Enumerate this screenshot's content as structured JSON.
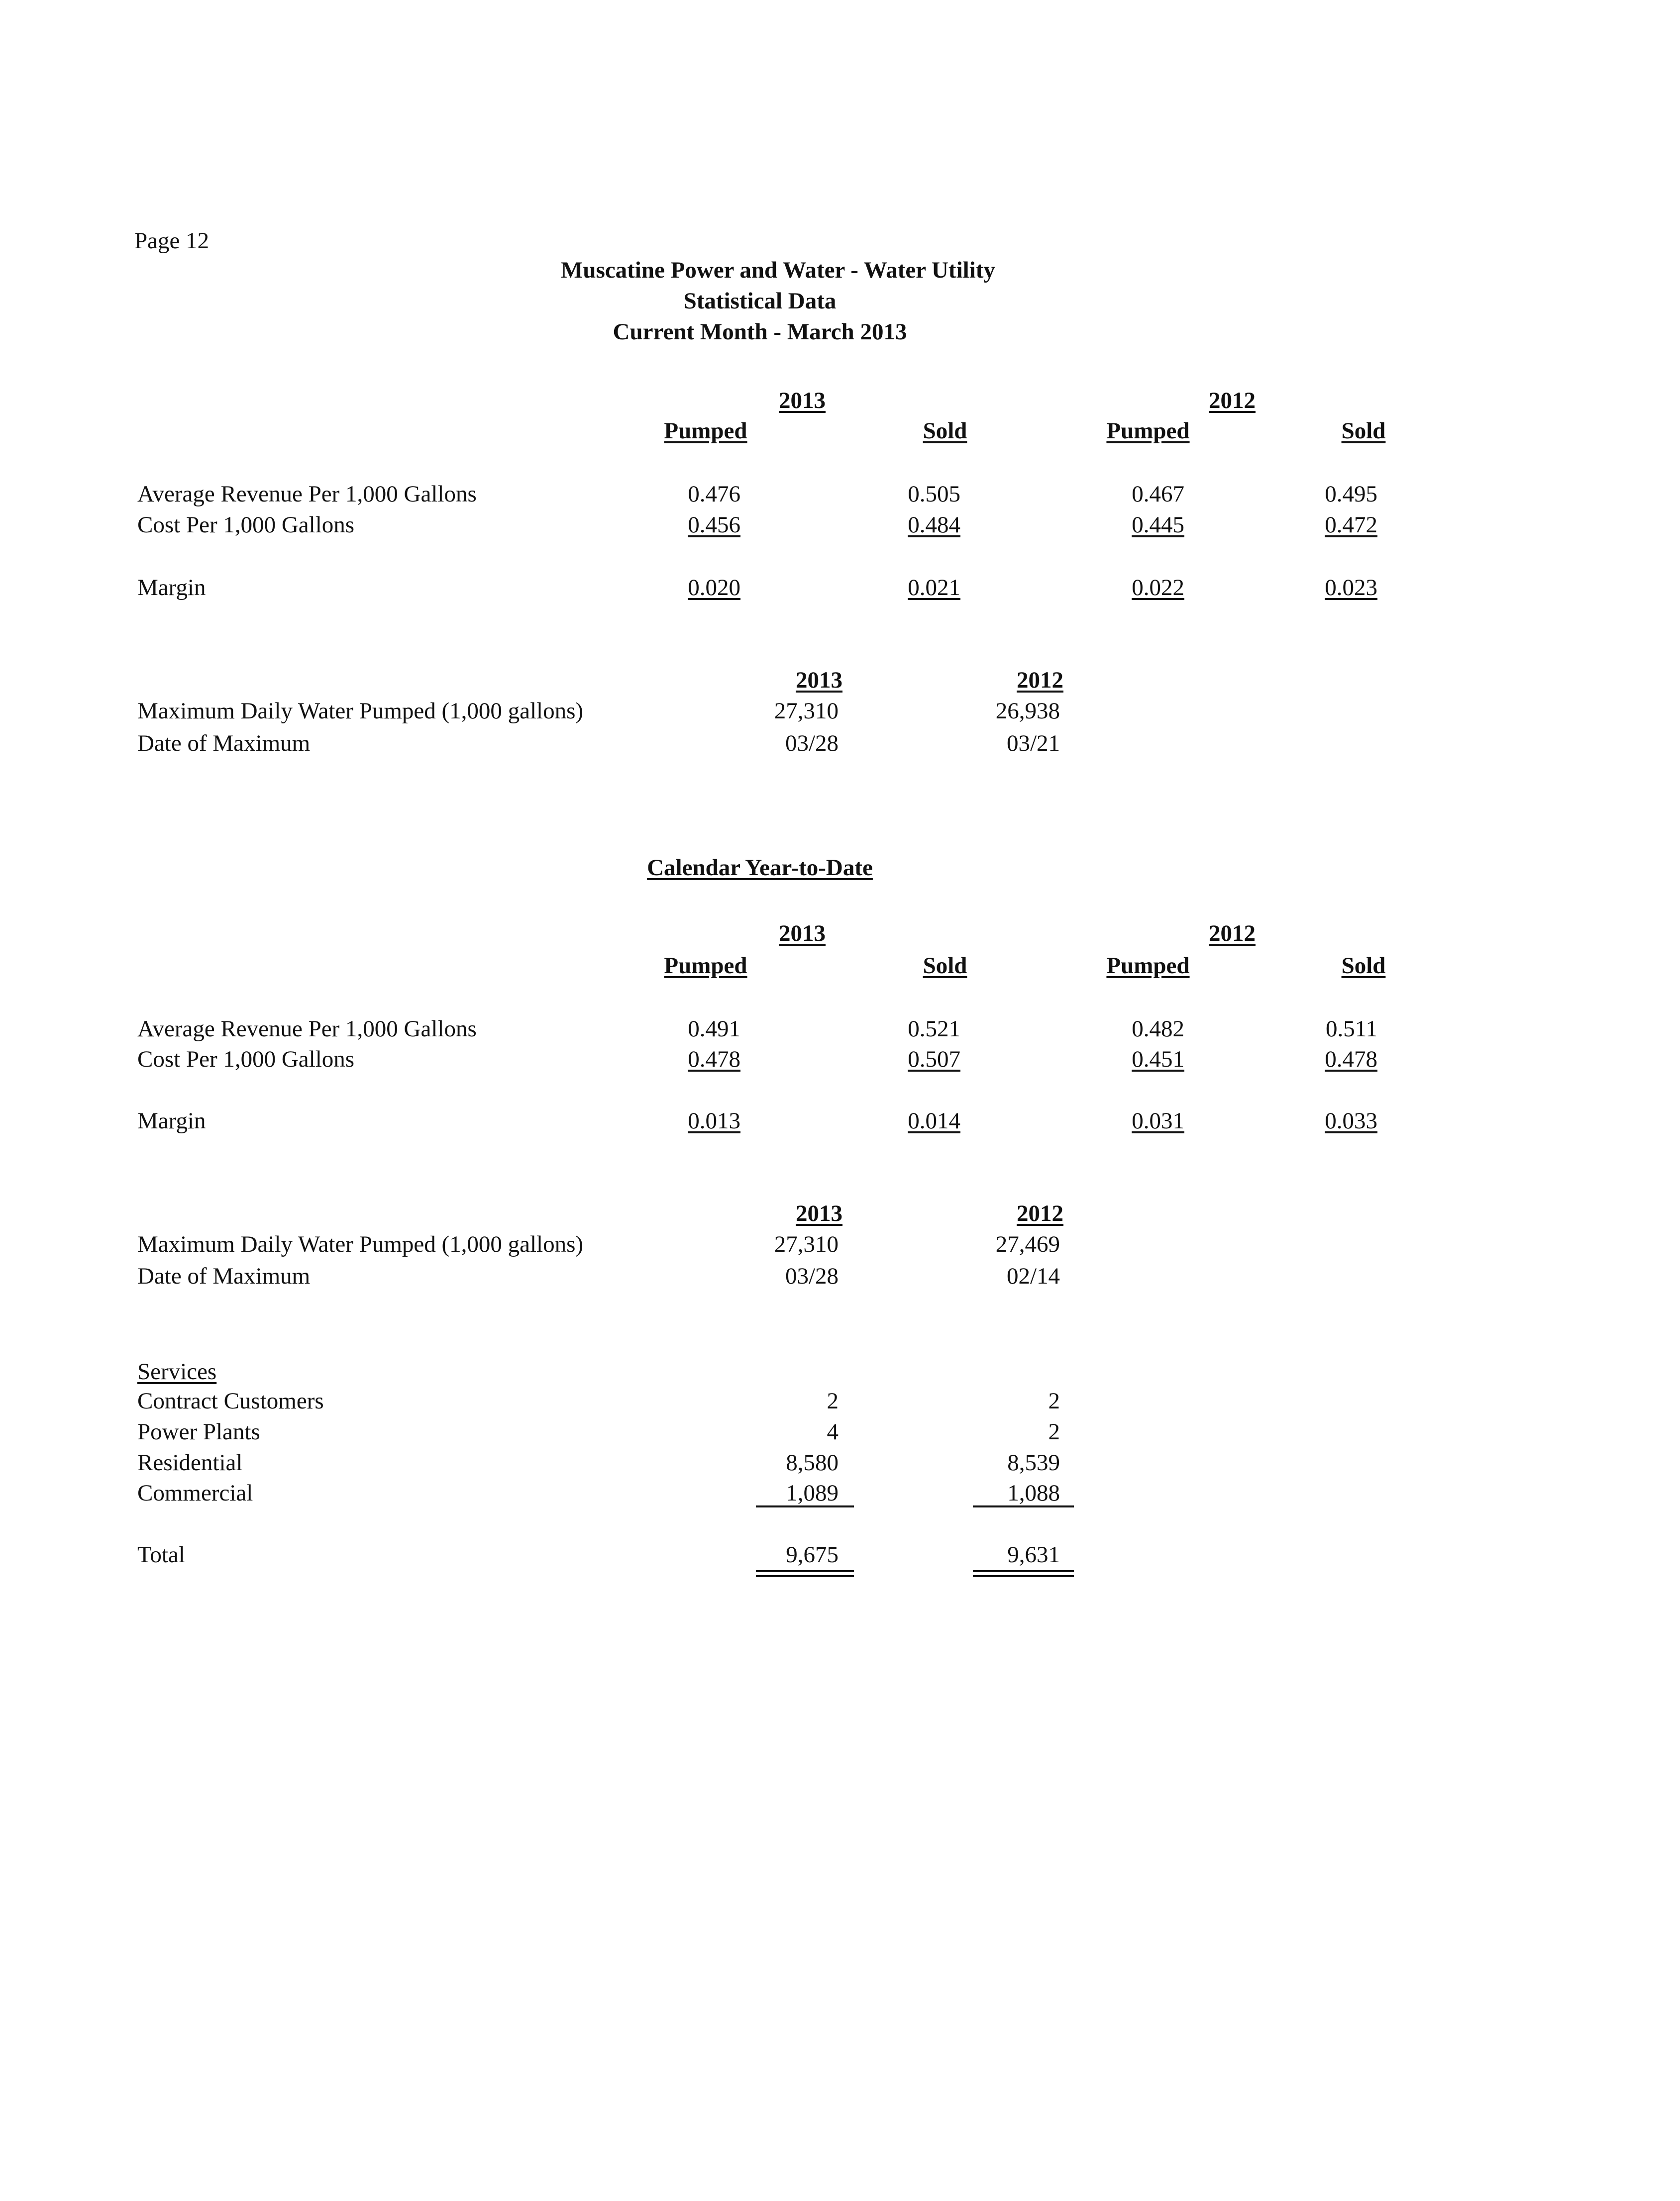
{
  "page_label": "Page 12",
  "title": {
    "line1": "Muscatine Power and Water - Water Utility",
    "line2": "Statistical Data",
    "line3": "Current Month - March 2013"
  },
  "current_month": {
    "years": [
      "2013",
      "2012"
    ],
    "col_headers": [
      "Pumped",
      "Sold",
      "Pumped",
      "Sold"
    ],
    "rows": [
      {
        "label": "Average Revenue Per 1,000 Gallons",
        "values": [
          "0.476",
          "0.505",
          "0.467",
          "0.495"
        ]
      },
      {
        "label": "Cost Per 1,000 Gallons",
        "values": [
          "0.456",
          "0.484",
          "0.445",
          "0.472"
        ]
      },
      {
        "label": "Margin",
        "values": [
          "0.020",
          "0.021",
          "0.022",
          "0.023"
        ]
      }
    ],
    "max": {
      "years": [
        "2013",
        "2012"
      ],
      "pumped_label": "Maximum Daily Water Pumped (1,000 gallons)",
      "pumped": [
        "27,310",
        "26,938"
      ],
      "date_label": "Date of Maximum",
      "dates": [
        "03/28",
        "03/21"
      ]
    }
  },
  "ytd": {
    "title": "Calendar Year-to-Date",
    "years": [
      "2013",
      "2012"
    ],
    "col_headers": [
      "Pumped",
      "Sold",
      "Pumped",
      "Sold"
    ],
    "rows": [
      {
        "label": "Average Revenue Per 1,000 Gallons",
        "values": [
          "0.491",
          "0.521",
          "0.482",
          "0.511"
        ]
      },
      {
        "label": "Cost Per 1,000 Gallons",
        "values": [
          "0.478",
          "0.507",
          "0.451",
          "0.478"
        ]
      },
      {
        "label": "Margin",
        "values": [
          "0.013",
          "0.014",
          "0.031",
          "0.033"
        ]
      }
    ],
    "max": {
      "years": [
        "2013",
        "2012"
      ],
      "pumped_label": "Maximum Daily Water Pumped (1,000 gallons)",
      "pumped": [
        "27,310",
        "27,469"
      ],
      "date_label": "Date of Maximum",
      "dates": [
        "03/28",
        "02/14"
      ]
    }
  },
  "services": {
    "title": "Services",
    "rows": [
      {
        "label": "Contract Customers",
        "values": [
          "2",
          "2"
        ]
      },
      {
        "label": "Power Plants",
        "values": [
          "4",
          "2"
        ]
      },
      {
        "label": "Residential",
        "values": [
          "8,580",
          "8,539"
        ]
      },
      {
        "label": "Commercial",
        "values": [
          "1,089",
          "1,088"
        ]
      }
    ],
    "total": {
      "label": "Total",
      "values": [
        "9,675",
        "9,631"
      ]
    }
  }
}
